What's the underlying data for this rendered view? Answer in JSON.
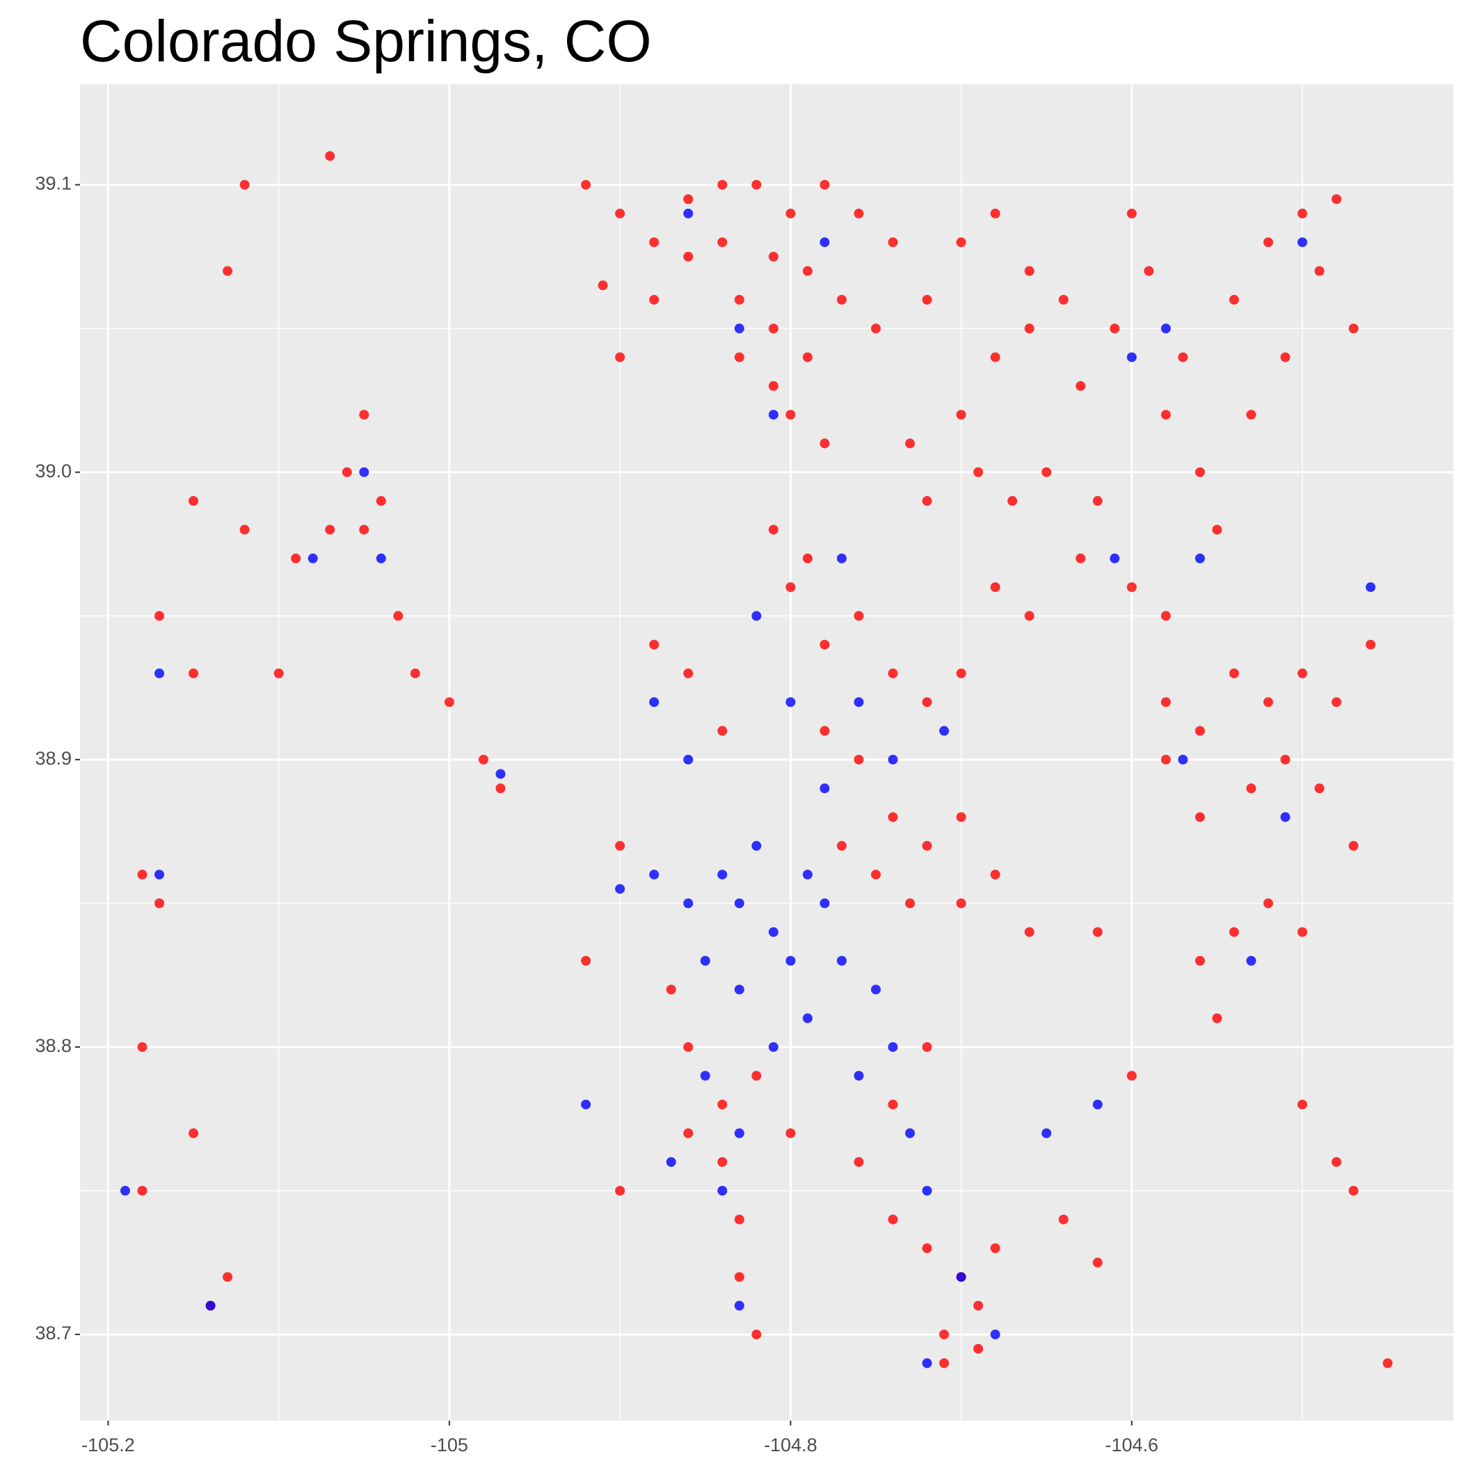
{
  "chart_data": {
    "type": "scatter",
    "title": "Colorado Springs, CO",
    "xlim": [
      -105.2165,
      -104.4115
    ],
    "ylim": [
      38.67,
      39.135
    ],
    "xticks": [
      -105.2,
      -105.0,
      -104.8,
      -104.6
    ],
    "yticks": [
      {
        "value": 38.7,
        "label": "38.7"
      },
      {
        "value": 38.8,
        "label": "38.8"
      },
      {
        "value": 38.9,
        "label": "38.9"
      },
      {
        "value": 39.0,
        "label": "39.0"
      },
      {
        "value": 39.1,
        "label": "39.1"
      }
    ],
    "grid": true,
    "series": [
      {
        "color": "#ff0000",
        "x": [
          -104.92,
          -104.9,
          -104.88,
          -104.86,
          -104.84,
          -104.82,
          -104.8,
          -104.78,
          -104.76,
          -104.84,
          -104.81,
          -104.79,
          -104.86,
          -104.91,
          -104.88,
          -104.83,
          -104.81,
          -104.79,
          -104.83,
          -104.81,
          -104.8,
          -104.78,
          -104.77,
          -104.75,
          -104.74,
          -104.72,
          -104.9,
          -104.7,
          -104.68,
          -104.66,
          -104.66,
          -104.68,
          -104.7,
          -104.64,
          -104.63,
          -104.69,
          -104.67,
          -104.65,
          -104.72,
          -104.73,
          -104.62,
          -104.63,
          -104.6,
          -104.58,
          -104.61,
          -104.59,
          -104.57,
          -104.58,
          -104.56,
          -104.6,
          -104.54,
          -104.52,
          -104.5,
          -104.48,
          -104.49,
          -104.47,
          -104.51,
          -104.53,
          -104.55,
          -104.58,
          -104.56,
          -104.54,
          -104.52,
          -104.5,
          -104.49,
          -104.51,
          -104.53,
          -104.56,
          -104.58,
          -104.48,
          -104.47,
          -104.54,
          -104.52,
          -104.5,
          -104.56,
          -104.46,
          -104.88,
          -104.86,
          -104.84,
          -104.8,
          -104.78,
          -104.76,
          -104.74,
          -104.72,
          -104.7,
          -104.78,
          -104.76,
          -104.74,
          -104.72,
          -104.7,
          -104.77,
          -104.75,
          -104.73,
          -104.79,
          -104.81,
          -104.68,
          -104.66,
          -104.87,
          -104.86,
          -104.84,
          -104.82,
          -104.8,
          -104.84,
          -104.86,
          -104.83,
          -104.76,
          -104.74,
          -104.72,
          -104.9,
          -104.92,
          -104.7,
          -104.68,
          -104.74,
          -104.72,
          -104.7,
          -104.69,
          -104.71,
          -104.69,
          -104.71,
          -104.68,
          -104.64,
          -104.62,
          -105.07,
          -105.12,
          -105.05,
          -105.06,
          -105.04,
          -105.05,
          -105.07,
          -105.09,
          -105.03,
          -105.02,
          -105.0,
          -104.98,
          -104.97,
          -105.15,
          -105.17,
          -105.15,
          -105.18,
          -105.17,
          -105.18,
          -105.15,
          -105.18,
          -105.14,
          -105.13,
          -105.12,
          -105.13,
          -105.1,
          -104.9,
          -104.82,
          -104.83,
          -104.48,
          -104.47,
          -104.5,
          -104.6,
          -104.45,
          -104.55,
          -104.62,
          -104.66
        ],
        "values": [
          39.1,
          39.09,
          39.08,
          39.075,
          39.1,
          39.1,
          39.09,
          39.1,
          39.09,
          39.08,
          39.075,
          39.07,
          39.095,
          39.065,
          39.06,
          39.06,
          39.05,
          39.04,
          39.04,
          39.03,
          39.02,
          39.01,
          39.06,
          39.05,
          39.08,
          39.06,
          39.04,
          39.02,
          39.04,
          39.05,
          39.07,
          39.09,
          39.08,
          39.06,
          39.03,
          39.0,
          38.99,
          39.0,
          38.99,
          39.01,
          38.99,
          38.97,
          38.96,
          38.95,
          39.05,
          39.07,
          39.04,
          39.02,
          39.0,
          39.09,
          39.06,
          39.08,
          39.09,
          39.095,
          39.07,
          39.05,
          39.04,
          39.02,
          38.98,
          38.92,
          38.91,
          38.93,
          38.92,
          38.93,
          38.89,
          38.9,
          38.89,
          38.88,
          38.9,
          38.92,
          38.87,
          38.84,
          38.85,
          38.84,
          38.83,
          38.94,
          38.94,
          38.93,
          38.91,
          38.96,
          38.94,
          38.95,
          38.93,
          38.92,
          38.93,
          38.91,
          38.9,
          38.88,
          38.87,
          38.88,
          38.87,
          38.86,
          38.85,
          38.97,
          38.98,
          38.96,
          38.95,
          38.82,
          38.8,
          38.78,
          38.79,
          38.77,
          38.76,
          38.77,
          38.74,
          38.76,
          38.78,
          38.8,
          38.87,
          38.83,
          38.85,
          38.86,
          38.74,
          38.73,
          38.72,
          38.71,
          38.7,
          38.695,
          38.69,
          38.73,
          38.74,
          38.725,
          39.11,
          39.1,
          39.02,
          39.0,
          38.99,
          38.98,
          38.98,
          38.97,
          38.95,
          38.93,
          38.92,
          38.9,
          38.89,
          38.99,
          38.95,
          38.93,
          38.86,
          38.85,
          38.8,
          38.77,
          38.75,
          38.71,
          38.72,
          38.98,
          39.07,
          38.93,
          38.75,
          38.7,
          38.72,
          38.76,
          38.75,
          38.78,
          38.79,
          38.69,
          38.81,
          38.84,
          38.84
        ]
      },
      {
        "color": "#0000ff",
        "x": [
          -104.83,
          -104.81,
          -104.79,
          -104.82,
          -104.8,
          -104.78,
          -104.84,
          -104.86,
          -104.88,
          -104.9,
          -104.85,
          -104.83,
          -104.81,
          -104.79,
          -104.77,
          -104.75,
          -104.74,
          -104.73,
          -104.72,
          -104.76,
          -104.85,
          -104.83,
          -104.87,
          -104.84,
          -104.78,
          -104.76,
          -104.8,
          -104.74,
          -104.71,
          -104.86,
          -104.88,
          -104.82,
          -104.77,
          -104.7,
          -104.72,
          -104.68,
          -104.83,
          -104.81,
          -104.78,
          -104.86,
          -104.61,
          -104.6,
          -104.58,
          -104.56,
          -104.5,
          -104.46,
          -104.57,
          -104.51,
          -104.53,
          -105.05,
          -105.04,
          -105.08,
          -104.97,
          -105.17,
          -105.19,
          -105.14,
          -105.17,
          -104.62,
          -104.65,
          -104.83,
          -104.92
        ],
        "values": [
          38.85,
          38.84,
          38.86,
          38.87,
          38.83,
          38.85,
          38.86,
          38.85,
          38.86,
          38.855,
          38.83,
          38.82,
          38.8,
          38.81,
          38.83,
          38.82,
          38.8,
          38.77,
          38.75,
          38.79,
          38.79,
          38.77,
          38.76,
          38.75,
          38.89,
          38.92,
          38.92,
          38.9,
          38.91,
          38.9,
          38.92,
          38.95,
          38.97,
          38.72,
          38.69,
          38.7,
          39.05,
          39.02,
          39.08,
          39.09,
          38.97,
          39.04,
          39.05,
          38.97,
          39.08,
          38.96,
          38.9,
          38.88,
          38.83,
          39.0,
          38.97,
          38.97,
          38.895,
          38.93,
          38.75,
          38.71,
          38.86,
          38.78,
          38.77,
          38.71,
          38.78
        ]
      }
    ]
  }
}
